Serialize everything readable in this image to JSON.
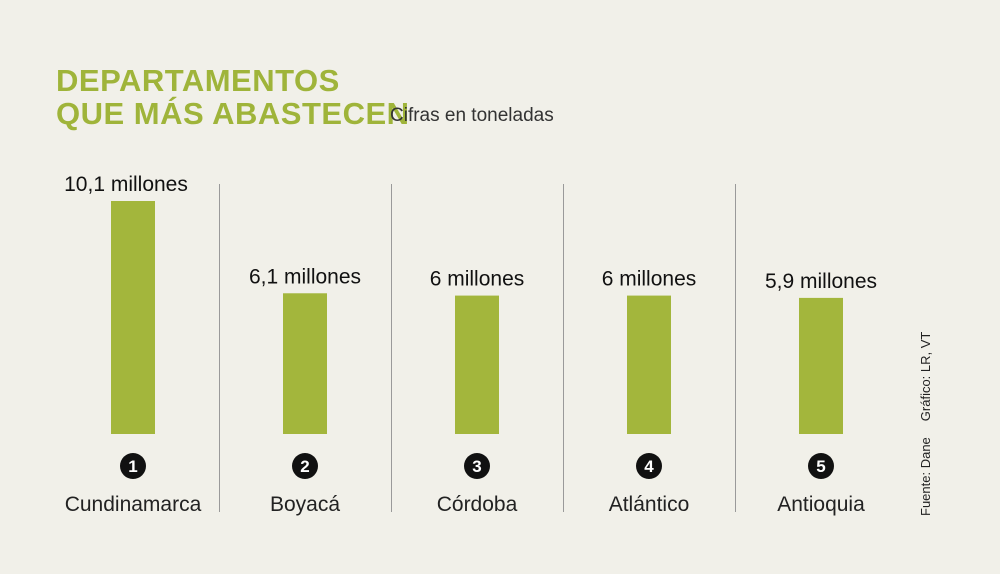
{
  "title": {
    "line1": "DEPARTAMENTOS",
    "line2": "QUE MÁS ABASTECEN"
  },
  "subtitle": "Cifras en toneladas",
  "source": {
    "fuente": "Fuente: Dane",
    "grafico": "Gráfico: LR, VT"
  },
  "colors": {
    "bar": "#a3b63c",
    "title": "#9fb43a",
    "background": "#f1f0e9"
  },
  "chart_data": {
    "type": "bar",
    "categories": [
      "Cundinamarca",
      "Boyacá",
      "Córdoba",
      "Atlántico",
      "Antioquia"
    ],
    "ranks": [
      "1",
      "2",
      "3",
      "4",
      "5"
    ],
    "values": [
      10.1,
      6.1,
      6,
      6,
      5.9
    ],
    "value_labels": [
      "10,1 millones",
      "6,1 millones",
      "6 millones",
      "6 millones",
      "5,9 millones"
    ],
    "unit": "toneladas",
    "grid": false,
    "legend": "none"
  }
}
